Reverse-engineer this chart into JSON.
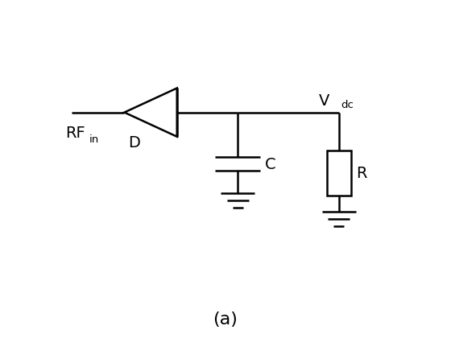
{
  "background_color": "#ffffff",
  "line_color": "#000000",
  "line_width": 1.8,
  "fig_width": 5.6,
  "fig_height": 4.52,
  "title_text": "(a)",
  "title_fontsize": 16,
  "label_RF": "RF",
  "label_RF_sub": "in",
  "label_D": "D",
  "label_C": "C",
  "label_R": "R",
  "label_Vdc": "V",
  "label_Vdc_sub": "dc",
  "xlim": [
    0,
    10
  ],
  "ylim": [
    0,
    9
  ]
}
